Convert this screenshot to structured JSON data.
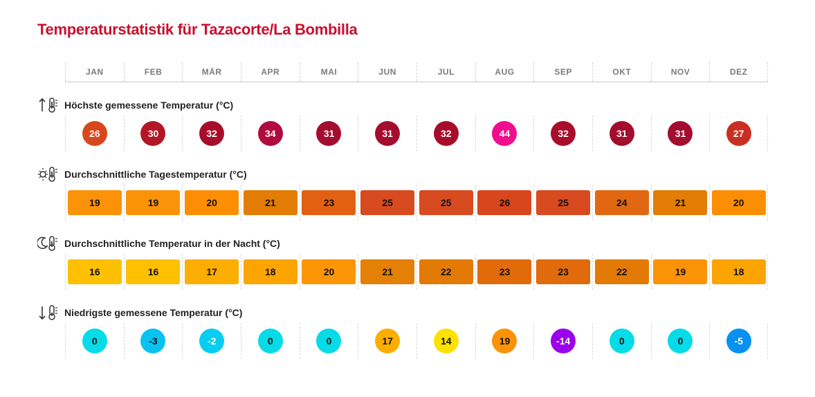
{
  "title": "Temperaturstatistik für Tazacorte/La Bombilla",
  "months": [
    "JAN",
    "FEB",
    "MÄR",
    "APR",
    "MAI",
    "JUN",
    "JUL",
    "AUG",
    "SEP",
    "OKT",
    "NOV",
    "DEZ"
  ],
  "sections": {
    "max": {
      "label": "Höchste gemessene Temperatur (°C)",
      "icon": "thermometer-up-icon",
      "values": [
        "26",
        "30",
        "32",
        "34",
        "31",
        "31",
        "32",
        "44",
        "32",
        "31",
        "31",
        "27"
      ],
      "colors": [
        "#d8461d",
        "#b31725",
        "#a70d2a",
        "#b00a3f",
        "#a40d2e",
        "#a40d2e",
        "#a70d2a",
        "#f10d8d",
        "#a70d2a",
        "#a40d2e",
        "#a40d2e",
        "#c93021"
      ]
    },
    "day": {
      "label": "Durchschnittliche Tagestemperatur (°C)",
      "icon": "sun-thermometer-icon",
      "values": [
        "19",
        "19",
        "20",
        "21",
        "23",
        "25",
        "25",
        "26",
        "25",
        "24",
        "21",
        "20"
      ],
      "colors": [
        "#fc9208",
        "#fc9208",
        "#fd8e04",
        "#e37c04",
        "#e16012",
        "#d84a1f",
        "#d84a1f",
        "#d8461d",
        "#d84a1f",
        "#e16810",
        "#e37c04",
        "#fd8e04"
      ]
    },
    "night": {
      "label": "Durchschnittliche Temperatur in der Nacht (°C)",
      "icon": "moon-thermometer-icon",
      "values": [
        "16",
        "16",
        "17",
        "18",
        "20",
        "21",
        "22",
        "23",
        "23",
        "22",
        "19",
        "18"
      ],
      "colors": [
        "#fec000",
        "#fec000",
        "#fcae00",
        "#fca400",
        "#fd9505",
        "#e38005",
        "#e37a05",
        "#e16a0b",
        "#e16a0b",
        "#e37a05",
        "#fc9208",
        "#fca400"
      ]
    },
    "min": {
      "label": "Niedrigste gemessene Temperatur (°C)",
      "icon": "thermometer-down-icon",
      "values": [
        "0",
        "-3",
        "-2",
        "0",
        "0",
        "17",
        "14",
        "19",
        "-14",
        "0",
        "0",
        "-5"
      ],
      "colors": [
        "#06dbe8",
        "#08c2f0",
        "#07cdf0",
        "#06dbe8",
        "#06dbe8",
        "#fcae00",
        "#fde100",
        "#fc9208",
        "#9a00ea",
        "#06dbe8",
        "#06dbe8",
        "#0891f0"
      ]
    }
  }
}
